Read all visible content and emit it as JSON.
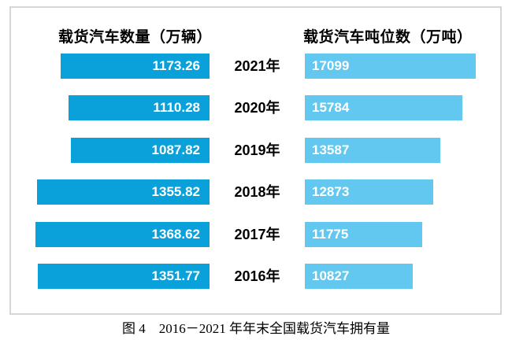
{
  "chart_data": {
    "type": "bar",
    "subtype": "diverging-horizontal",
    "title": "图 4　2016－2021 年年末全国载货汽车拥有量",
    "categories": [
      "2021年",
      "2020年",
      "2019年",
      "2018年",
      "2017年",
      "2016年"
    ],
    "series": [
      {
        "name": "载货汽车数量（万辆）",
        "side": "left",
        "values": [
          1173.26,
          1110.28,
          1087.82,
          1355.82,
          1368.62,
          1351.77
        ],
        "labels": [
          "1173.26",
          "1110.28",
          "1087.82",
          "1355.82",
          "1368.62",
          "1351.77"
        ],
        "color": "#0aa1da",
        "xlim": [
          0,
          1400
        ]
      },
      {
        "name": "载货汽车吨位数（万吨）",
        "side": "right",
        "values": [
          17099,
          15784,
          13587,
          12873,
          11775,
          10827
        ],
        "labels": [
          "17099",
          "15784",
          "13587",
          "12873",
          "11775",
          "10827"
        ],
        "color": "#63c8f0",
        "xlim": [
          0,
          17400
        ]
      }
    ],
    "value_labels": "inside-bars",
    "grid": false,
    "legend_position": "column-headers-top"
  },
  "colors": {
    "left_bar": "#0aa1da",
    "right_bar": "#63c8f0",
    "bar_label_text": "#ffffff",
    "heading_text": "#000000",
    "frame_border": "#d6d6d6",
    "background": "#ffffff"
  }
}
